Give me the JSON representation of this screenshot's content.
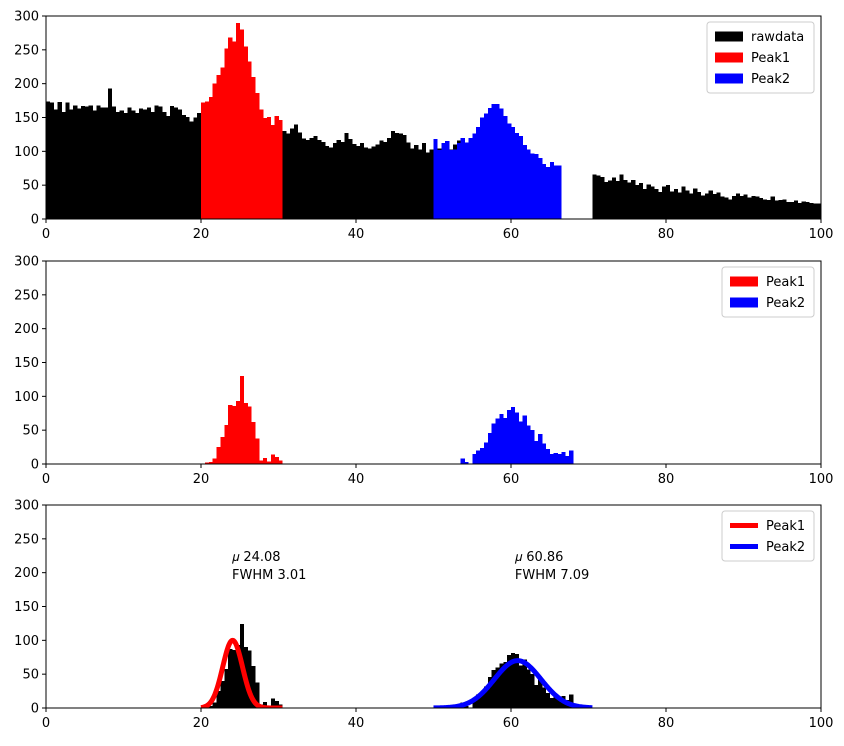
{
  "chart_data": [
    {
      "type": "bar",
      "panel": "raw histogram",
      "xlim": [
        0,
        100
      ],
      "ylim": [
        0,
        300
      ],
      "xticks": [
        "0",
        "20",
        "40",
        "60",
        "80",
        "100"
      ],
      "yticks": [
        "0",
        "50",
        "100",
        "150",
        "200",
        "250",
        "300"
      ],
      "grid": false,
      "legend_position": "top-right",
      "bin_width": 0.5,
      "series": [
        {
          "name": "rawdata",
          "color": "#000000",
          "x_start": 0,
          "values": [
            174,
            172,
            162,
            173,
            158,
            172,
            162,
            168,
            163,
            167,
            166,
            168,
            160,
            168,
            165,
            165,
            193,
            166,
            158,
            160,
            157,
            165,
            160,
            157,
            163,
            162,
            165,
            158,
            168,
            166,
            158,
            152,
            167,
            165,
            162,
            154,
            151,
            144,
            150,
            157,
            149,
            158,
            162,
            167,
            160,
            170,
            173,
            168,
            160,
            152,
            145,
            147,
            149,
            157,
            150,
            148,
            137,
            139,
            136,
            128,
            125,
            130,
            126,
            134,
            140,
            128,
            119,
            117,
            120,
            123,
            117,
            114,
            108,
            106,
            112,
            117,
            114,
            127,
            118,
            111,
            108,
            112,
            106,
            104,
            107,
            110,
            116,
            114,
            120,
            130,
            127,
            126,
            124,
            113,
            104,
            109,
            103,
            112,
            98,
            103,
            105,
            104,
            110,
            99,
            103,
            110,
            116,
            111,
            100,
            100,
            96,
            104,
            109,
            102,
            92,
            98,
            97,
            103,
            95,
            93,
            100,
            104,
            109,
            100,
            95,
            93
          ]
        },
        {
          "name": "Peak1",
          "color": "#ff0000",
          "x_start": 20,
          "values": [
            172,
            174,
            180,
            200,
            213,
            224,
            252,
            268,
            262,
            290,
            280,
            255,
            233,
            210,
            186,
            162,
            149,
            151,
            139,
            152,
            146
          ]
        },
        {
          "name": "Peak2",
          "color": "#0000ff",
          "x_start": 50,
          "values": [
            118,
            102,
            112,
            115,
            102,
            103,
            112,
            120,
            113,
            120,
            126,
            136,
            150,
            156,
            164,
            170,
            170,
            163,
            152,
            141,
            136,
            127,
            123,
            109,
            103,
            97,
            96,
            90,
            81,
            77,
            84,
            79,
            79
          ]
        },
        {
          "name": "rawdata",
          "color": "#000000",
          "x_start": 70.5,
          "values": [
            66,
            64,
            62,
            55,
            57,
            61,
            56,
            66,
            58,
            54,
            58,
            50,
            53,
            44,
            51,
            48,
            44,
            40,
            48,
            50,
            41,
            44,
            39,
            48,
            42,
            38,
            45,
            40,
            35,
            38,
            42,
            37,
            39,
            33,
            32,
            29,
            34,
            38,
            34,
            36,
            32,
            34,
            33,
            31,
            29,
            28,
            33,
            27,
            28,
            29,
            25,
            25,
            27,
            24,
            26,
            25,
            24,
            23,
            23,
            22
          ]
        }
      ]
    },
    {
      "type": "bar",
      "panel": "background-subtracted peaks",
      "xlim": [
        0,
        100
      ],
      "ylim": [
        0,
        300
      ],
      "xticks": [
        "0",
        "20",
        "40",
        "60",
        "80",
        "100"
      ],
      "yticks": [
        "0",
        "50",
        "100",
        "150",
        "200",
        "250",
        "300"
      ],
      "grid": false,
      "legend_position": "top-right",
      "bin_width": 0.5,
      "series": [
        {
          "name": "Peak1",
          "color": "#ff0000",
          "x_start": 20,
          "values": [
            0,
            2,
            3,
            8,
            25,
            40,
            58,
            87,
            86,
            93,
            130,
            90,
            85,
            62,
            38,
            5,
            9,
            4,
            14,
            10,
            5
          ]
        },
        {
          "name": "Peak2",
          "color": "#0000ff",
          "x_start": 50,
          "values": [
            0,
            0,
            0,
            0,
            0,
            0,
            0,
            8,
            3,
            0,
            15,
            20,
            24,
            32,
            46,
            60,
            67,
            74,
            68,
            80,
            84,
            76,
            63,
            72,
            57,
            50,
            34,
            44,
            30,
            22,
            15,
            16,
            15,
            18,
            12,
            20
          ]
        }
      ]
    },
    {
      "type": "bar",
      "panel": "gaussian fits",
      "xlim": [
        0,
        100
      ],
      "ylim": [
        0,
        300
      ],
      "xticks": [
        "0",
        "20",
        "40",
        "60",
        "80",
        "100"
      ],
      "yticks": [
        "0",
        "50",
        "100",
        "150",
        "200",
        "250",
        "300"
      ],
      "grid": false,
      "legend_position": "top-right",
      "bin_width": 0.5,
      "hist_color": "#000000",
      "hist": [
        {
          "x_start": 20,
          "values": [
            0,
            2,
            3,
            8,
            25,
            40,
            58,
            87,
            86,
            93,
            124,
            90,
            85,
            62,
            38,
            5,
            9,
            4,
            14,
            10,
            5
          ]
        },
        {
          "x_start": 50,
          "values": [
            0,
            0,
            0,
            0,
            0,
            0,
            0,
            8,
            3,
            0,
            15,
            20,
            24,
            32,
            46,
            56,
            60,
            66,
            68,
            78,
            81,
            80,
            63,
            72,
            57,
            50,
            34,
            44,
            30,
            22,
            15,
            16,
            15,
            18,
            12,
            20
          ]
        }
      ],
      "series": [
        {
          "name": "Peak1",
          "color": "#ff0000",
          "curve": "gaussian",
          "mu": 24.08,
          "fwhm": 3.01,
          "amplitude": 100,
          "x_range": [
            20,
            30.5
          ]
        },
        {
          "name": "Peak2",
          "color": "#0000ff",
          "curve": "gaussian",
          "mu": 60.86,
          "fwhm": 7.09,
          "amplitude": 70,
          "x_range": [
            50,
            70.5
          ]
        }
      ],
      "annotations": [
        {
          "x": 24,
          "y": 225,
          "line1": "𝜇 24.08",
          "line2": "FWHM 3.01"
        },
        {
          "x": 60.5,
          "y": 225,
          "line1": "𝜇 60.86",
          "line2": "FWHM 7.09"
        }
      ]
    }
  ]
}
